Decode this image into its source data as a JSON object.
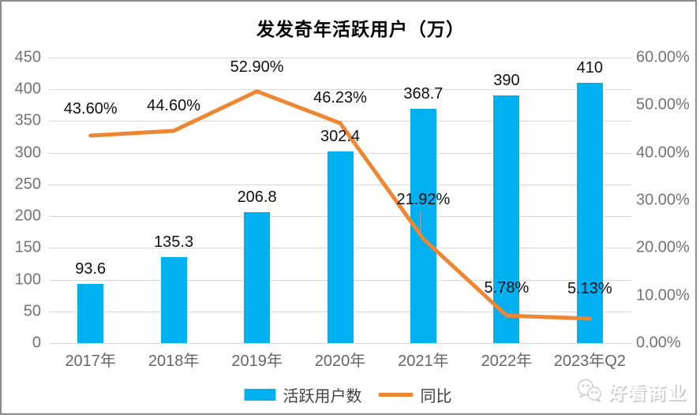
{
  "title": "发发奇年活跃用户（万）",
  "chart_data": {
    "type": "combo-bar-line",
    "title": "发发奇年活跃用户（万）",
    "categories": [
      "2017年",
      "2018年",
      "2019年",
      "2020年",
      "2021年",
      "2022年",
      "2023年Q2"
    ],
    "series": [
      {
        "name": "活跃用户数",
        "type": "bar",
        "axis": "left",
        "values": [
          93.6,
          135.3,
          206.8,
          302.4,
          368.7,
          390,
          410
        ],
        "labels": [
          "93.6",
          "135.3",
          "206.8",
          "302.4",
          "368.7",
          "390",
          "410"
        ],
        "color": "#00B0F0"
      },
      {
        "name": "同比",
        "type": "line",
        "axis": "right",
        "values": [
          43.6,
          44.6,
          52.9,
          46.23,
          21.92,
          5.78,
          5.13
        ],
        "labels": [
          "43.60%",
          "44.60%",
          "52.90%",
          "46.23%",
          "21.92%",
          "5.78%",
          "5.13%"
        ],
        "color": "#ED8733"
      }
    ],
    "left_axis": {
      "min": 0,
      "max": 450,
      "step": 50,
      "ticks": [
        "0",
        "50",
        "100",
        "150",
        "200",
        "250",
        "300",
        "350",
        "400",
        "450"
      ]
    },
    "right_axis": {
      "min": 0,
      "max": 60,
      "step": 10,
      "ticks": [
        "0.00%",
        "10.00%",
        "20.00%",
        "30.00%",
        "40.00%",
        "50.00%",
        "60.00%"
      ]
    },
    "grid": true,
    "legend_position": "bottom",
    "legend": [
      {
        "label": "活跃用户数",
        "marker": "bar",
        "color": "#00B0F0"
      },
      {
        "label": "同比",
        "marker": "line",
        "color": "#ED8733"
      }
    ]
  },
  "colors": {
    "bar": "#00B0F0",
    "line": "#ED8733",
    "gridline": "#d9d9d9",
    "axis_tick_text": "#737373",
    "data_label_text": "#111111",
    "frame_border": "#8c8c8c"
  },
  "watermark": {
    "label": "好看商业",
    "icon": "chat-bubbles-icon"
  }
}
